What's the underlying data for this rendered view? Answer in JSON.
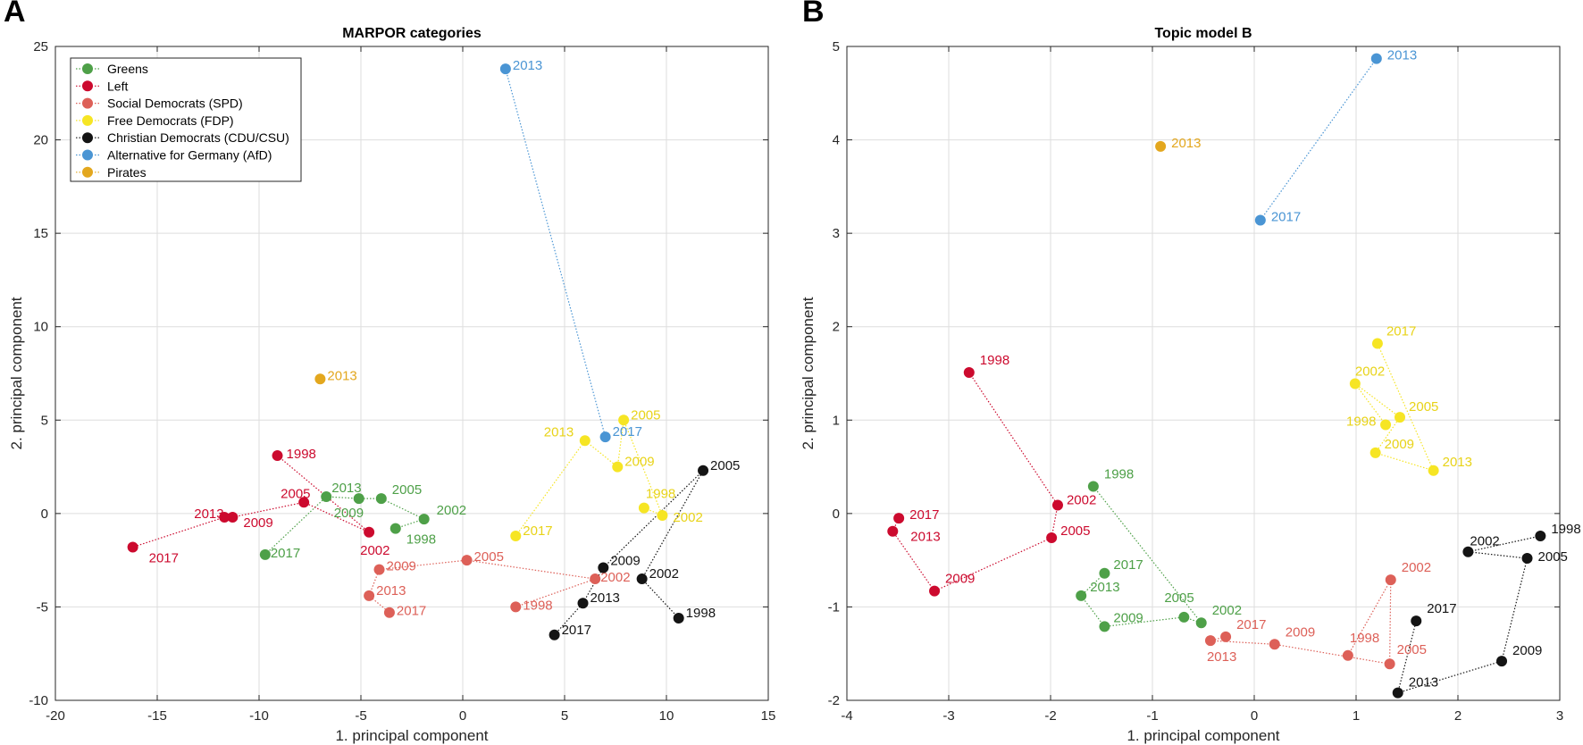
{
  "legend": [
    {
      "key": "greens",
      "name": "Greens",
      "color": "#4ea048"
    },
    {
      "key": "left",
      "name": "Left",
      "color": "#cc0a2e"
    },
    {
      "key": "spd",
      "name": "Social Democrats (SPD)",
      "color": "#dd6058"
    },
    {
      "key": "fdp",
      "name": "Free Democrats (FDP)",
      "color": "#f6e524"
    },
    {
      "key": "cdu",
      "name": "Christian Democrats (CDU/CSU)",
      "color": "#141414"
    },
    {
      "key": "afd",
      "name": "Alternative for Germany (AfD)",
      "color": "#4a95d4"
    },
    {
      "key": "pirates",
      "name": "Pirates",
      "color": "#e3a71e"
    }
  ],
  "label_colors": {
    "greens": "#4ea048",
    "left": "#cc0a2e",
    "spd": "#dd6058",
    "fdp": "#e8d318",
    "cdu": "#141414",
    "afd": "#4a95d4",
    "pirates": "#e3a71e"
  },
  "chart_data": [
    {
      "panel": "A",
      "type": "scatter",
      "title": "MARPOR categories",
      "xlabel": "1. principal component",
      "ylabel": "2. principal component",
      "xlim": [
        -20,
        15
      ],
      "ylim": [
        -10,
        25
      ],
      "xticks": [
        -20,
        -15,
        -10,
        -5,
        0,
        5,
        10,
        15
      ],
      "yticks": [
        -10,
        -5,
        0,
        5,
        10,
        15,
        20,
        25
      ],
      "grid": true,
      "legend_position": "top-left",
      "series": [
        {
          "party": "greens",
          "points": [
            {
              "year": "1998",
              "x": -3.3,
              "y": -0.8
            },
            {
              "year": "2002",
              "x": -1.9,
              "y": -0.3
            },
            {
              "year": "2005",
              "x": -4.0,
              "y": 0.8
            },
            {
              "year": "2009",
              "x": -5.1,
              "y": 0.8
            },
            {
              "year": "2013",
              "x": -6.7,
              "y": 0.9
            },
            {
              "year": "2017",
              "x": -9.7,
              "y": -2.2
            }
          ]
        },
        {
          "party": "left",
          "points": [
            {
              "year": "1998",
              "x": -9.1,
              "y": 3.1
            },
            {
              "year": "2002",
              "x": -4.6,
              "y": -1.0
            },
            {
              "year": "2005",
              "x": -7.8,
              "y": 0.6
            },
            {
              "year": "2009",
              "x": -11.3,
              "y": -0.2
            },
            {
              "year": "2013",
              "x": -11.7,
              "y": -0.2
            },
            {
              "year": "2017",
              "x": -16.2,
              "y": -1.8
            }
          ]
        },
        {
          "party": "spd",
          "points": [
            {
              "year": "1998",
              "x": 2.6,
              "y": -5.0
            },
            {
              "year": "2002",
              "x": 6.5,
              "y": -3.5
            },
            {
              "year": "2005",
              "x": 0.2,
              "y": -2.5
            },
            {
              "year": "2009",
              "x": -4.1,
              "y": -3.0
            },
            {
              "year": "2013",
              "x": -4.6,
              "y": -4.4
            },
            {
              "year": "2017",
              "x": -3.6,
              "y": -5.3
            }
          ]
        },
        {
          "party": "fdp",
          "points": [
            {
              "year": "1998",
              "x": 8.9,
              "y": 0.3
            },
            {
              "year": "2002",
              "x": 9.8,
              "y": -0.1
            },
            {
              "year": "2005",
              "x": 7.9,
              "y": 5.0
            },
            {
              "year": "2009",
              "x": 7.6,
              "y": 2.5
            },
            {
              "year": "2013",
              "x": 6.0,
              "y": 3.9
            },
            {
              "year": "2017",
              "x": 2.6,
              "y": -1.2
            }
          ]
        },
        {
          "party": "cdu",
          "points": [
            {
              "year": "1998",
              "x": 10.6,
              "y": -5.6
            },
            {
              "year": "2002",
              "x": 8.8,
              "y": -3.5
            },
            {
              "year": "2005",
              "x": 11.8,
              "y": 2.3
            },
            {
              "year": "2009",
              "x": 6.9,
              "y": -2.9
            },
            {
              "year": "2013",
              "x": 5.9,
              "y": -4.8
            },
            {
              "year": "2017",
              "x": 4.5,
              "y": -6.5
            }
          ]
        },
        {
          "party": "afd",
          "points": [
            {
              "year": "2013",
              "x": 2.1,
              "y": 23.8
            },
            {
              "year": "2017",
              "x": 7.0,
              "y": 4.1
            }
          ]
        },
        {
          "party": "pirates",
          "points": [
            {
              "year": "2013",
              "x": -7.0,
              "y": 7.2
            }
          ]
        }
      ]
    },
    {
      "panel": "B",
      "type": "scatter",
      "title": "Topic model B",
      "xlabel": "1. principal component",
      "ylabel": "2. principal component",
      "xlim": [
        -4,
        3
      ],
      "ylim": [
        -2,
        5
      ],
      "xticks": [
        -4,
        -3,
        -2,
        -1,
        0,
        1,
        2,
        3
      ],
      "yticks": [
        -2,
        -1,
        0,
        1,
        2,
        3,
        4,
        5
      ],
      "grid": true,
      "series": [
        {
          "party": "greens",
          "points": [
            {
              "year": "1998",
              "x": -1.58,
              "y": 0.29
            },
            {
              "year": "2002",
              "x": -0.52,
              "y": -1.17
            },
            {
              "year": "2005",
              "x": -0.69,
              "y": -1.11
            },
            {
              "year": "2009",
              "x": -1.47,
              "y": -1.21
            },
            {
              "year": "2013",
              "x": -1.7,
              "y": -0.88
            },
            {
              "year": "2017",
              "x": -1.47,
              "y": -0.64
            }
          ]
        },
        {
          "party": "left",
          "points": [
            {
              "year": "1998",
              "x": -2.8,
              "y": 1.51
            },
            {
              "year": "2002",
              "x": -1.93,
              "y": 0.09
            },
            {
              "year": "2005",
              "x": -1.99,
              "y": -0.26
            },
            {
              "year": "2009",
              "x": -3.14,
              "y": -0.83
            },
            {
              "year": "2013",
              "x": -3.55,
              "y": -0.19
            },
            {
              "year": "2017",
              "x": -3.49,
              "y": -0.05
            }
          ]
        },
        {
          "party": "spd",
          "points": [
            {
              "year": "1998",
              "x": 0.92,
              "y": -1.52
            },
            {
              "year": "2002",
              "x": 1.34,
              "y": -0.71
            },
            {
              "year": "2005",
              "x": 1.33,
              "y": -1.61
            },
            {
              "year": "2009",
              "x": 0.2,
              "y": -1.4
            },
            {
              "year": "2013",
              "x": -0.43,
              "y": -1.36
            },
            {
              "year": "2017",
              "x": -0.28,
              "y": -1.32
            }
          ]
        },
        {
          "party": "fdp",
          "points": [
            {
              "year": "1998",
              "x": 1.29,
              "y": 0.95
            },
            {
              "year": "2002",
              "x": 0.99,
              "y": 1.39
            },
            {
              "year": "2005",
              "x": 1.43,
              "y": 1.03
            },
            {
              "year": "2009",
              "x": 1.19,
              "y": 0.65
            },
            {
              "year": "2013",
              "x": 1.76,
              "y": 0.46
            },
            {
              "year": "2017",
              "x": 1.21,
              "y": 1.82
            }
          ]
        },
        {
          "party": "cdu",
          "points": [
            {
              "year": "1998",
              "x": 2.81,
              "y": -0.24
            },
            {
              "year": "2002",
              "x": 2.1,
              "y": -0.41
            },
            {
              "year": "2005",
              "x": 2.68,
              "y": -0.48
            },
            {
              "year": "2009",
              "x": 2.43,
              "y": -1.58
            },
            {
              "year": "2013",
              "x": 1.41,
              "y": -1.92
            },
            {
              "year": "2017",
              "x": 1.59,
              "y": -1.15
            }
          ]
        },
        {
          "party": "afd",
          "points": [
            {
              "year": "2013",
              "x": 1.2,
              "y": 4.87
            },
            {
              "year": "2017",
              "x": 0.06,
              "y": 3.14
            }
          ]
        },
        {
          "party": "pirates",
          "points": [
            {
              "year": "2013",
              "x": -0.92,
              "y": 3.93
            }
          ]
        }
      ]
    }
  ]
}
